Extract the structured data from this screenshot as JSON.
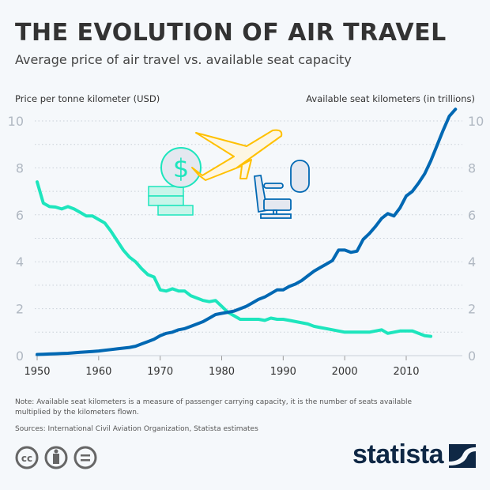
{
  "header": {
    "title": "THE EVOLUTION OF AIR TRAVEL",
    "subtitle": "Average price of air travel vs. available seat capacity"
  },
  "chart_data": {
    "type": "line",
    "title": "THE EVOLUTION OF AIR TRAVEL",
    "subtitle": "Average price of air travel vs. available seat capacity",
    "ylabel_left": "Price per tonne kilometer (USD)",
    "ylabel_right": "Available seat kilometers (in trillions)",
    "xlim": [
      1950,
      2018
    ],
    "ylim": [
      0,
      10
    ],
    "x_ticks": [
      1950,
      1960,
      1970,
      1980,
      1990,
      2000,
      2010
    ],
    "y_ticks": [
      0,
      2,
      4,
      6,
      8,
      10
    ],
    "grid": true,
    "series": [
      {
        "axis": "left",
        "color": "#1de5bd",
        "start_year": 1950,
        "values": [
          7.4,
          6.5,
          6.35,
          6.33,
          6.25,
          6.35,
          6.25,
          6.1,
          5.95,
          5.95,
          5.8,
          5.65,
          5.3,
          4.9,
          4.5,
          4.2,
          4.0,
          3.7,
          3.45,
          3.35,
          2.8,
          2.75,
          2.85,
          2.75,
          2.75,
          2.55,
          2.45,
          2.35,
          2.3,
          2.35,
          2.1,
          1.85,
          1.7,
          1.55,
          1.55,
          1.55,
          1.55,
          1.5,
          1.6,
          1.55,
          1.55,
          1.5,
          1.45,
          1.4,
          1.35,
          1.25,
          1.2,
          1.15,
          1.1,
          1.05,
          1.0,
          1.0,
          1.0,
          1.0,
          1.0,
          1.05,
          1.1,
          0.95,
          1.0,
          1.05,
          1.05,
          1.05,
          0.95,
          0.85,
          0.82
        ]
      },
      {
        "axis": "right",
        "color": "#0068b3",
        "start_year": 1950,
        "values": [
          0.05,
          0.06,
          0.07,
          0.08,
          0.09,
          0.1,
          0.12,
          0.14,
          0.16,
          0.18,
          0.2,
          0.23,
          0.26,
          0.29,
          0.32,
          0.35,
          0.4,
          0.5,
          0.6,
          0.7,
          0.85,
          0.95,
          1.0,
          1.1,
          1.15,
          1.25,
          1.35,
          1.45,
          1.6,
          1.75,
          1.8,
          1.85,
          1.9,
          2.0,
          2.1,
          2.25,
          2.4,
          2.5,
          2.65,
          2.8,
          2.8,
          2.95,
          3.05,
          3.2,
          3.4,
          3.6,
          3.75,
          3.9,
          4.05,
          4.5,
          4.5,
          4.4,
          4.45,
          4.95,
          5.2,
          5.5,
          5.85,
          6.05,
          5.95,
          6.3,
          6.8,
          7.0,
          7.35,
          7.75,
          8.3,
          8.95,
          9.6,
          10.2,
          10.5
        ]
      }
    ]
  },
  "footer": {
    "note": "Note: Available seat kilometers is a measure of passenger carrying capacity, it is the number of seats available multiplied by the kilometers flown.",
    "sources": "Sources: International Civil Aviation Organization, Statista estimates",
    "brand": "statista",
    "license_icons": [
      "cc-icon",
      "by-icon",
      "nd-icon"
    ]
  }
}
